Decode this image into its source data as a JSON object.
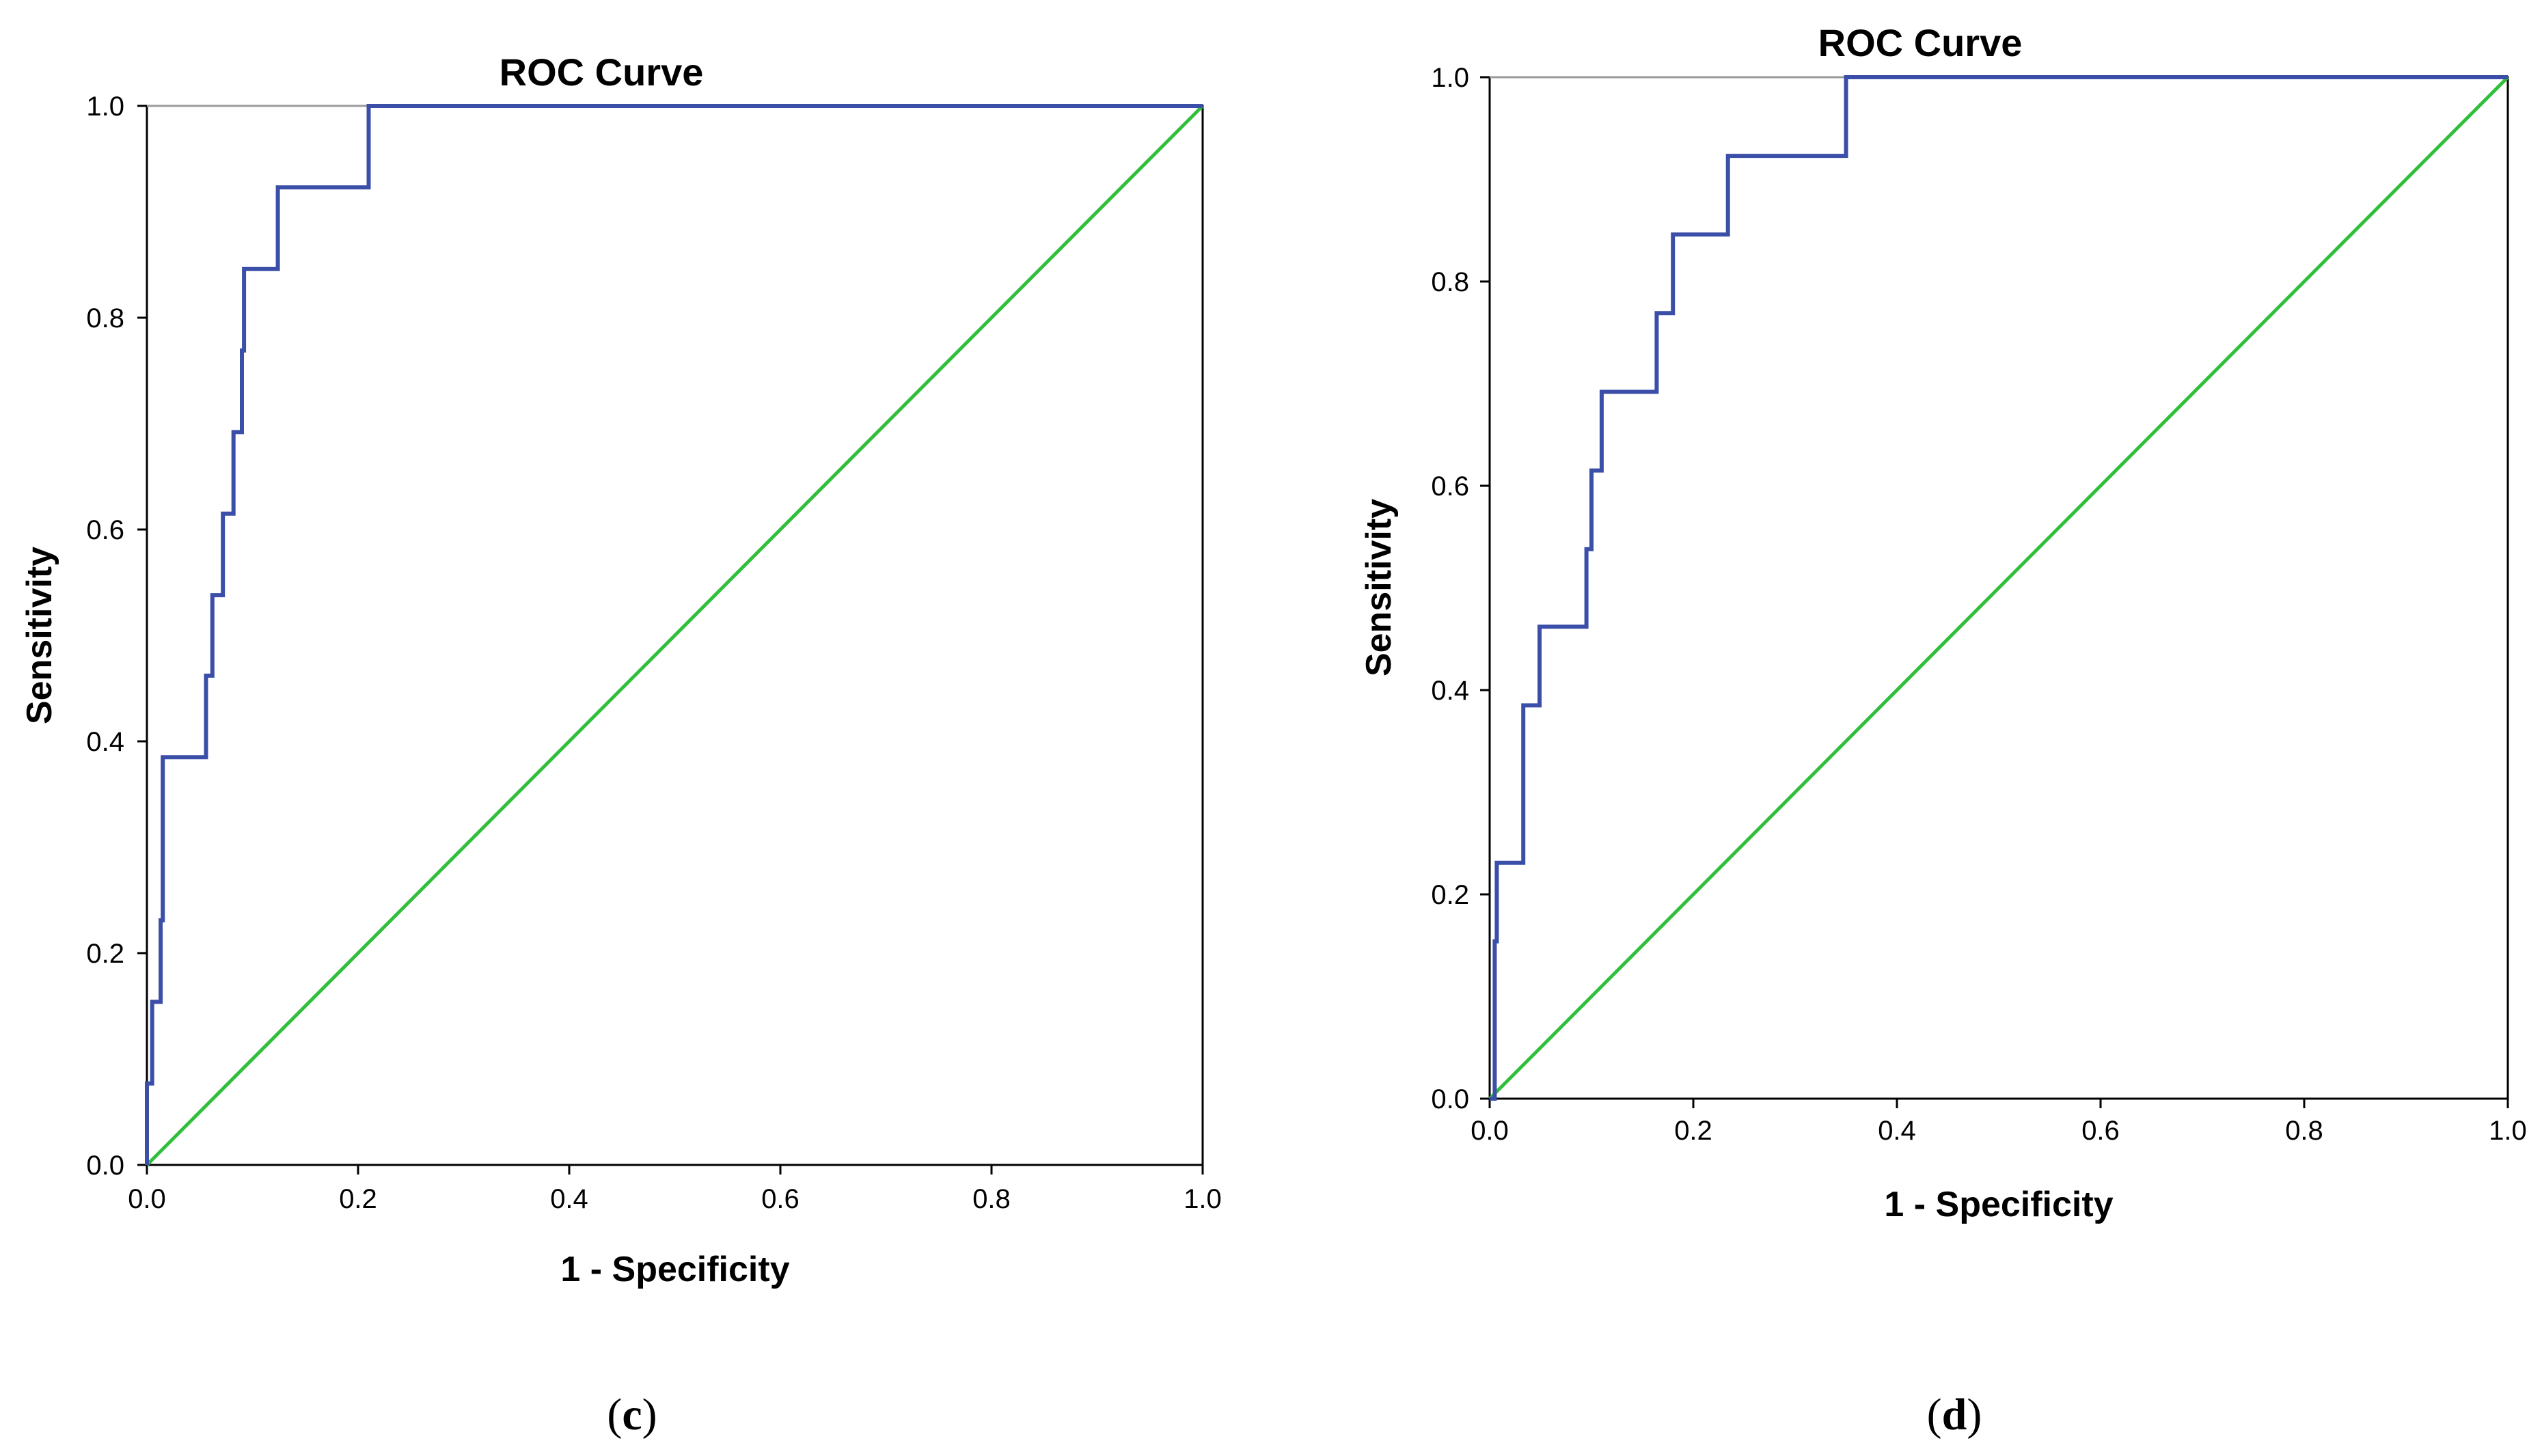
{
  "chart_data": [
    {
      "type": "line",
      "panel": "c",
      "title": "ROC Curve",
      "xlabel": "1 - Specificity",
      "ylabel": "Sensitivity",
      "xlim": [
        0.0,
        1.0
      ],
      "ylim": [
        0.0,
        1.0
      ],
      "xticks": [
        "0.0",
        "0.2",
        "0.4",
        "0.6",
        "0.8",
        "1.0"
      ],
      "yticks": [
        "0.0",
        "0.2",
        "0.4",
        "0.6",
        "0.8",
        "1.0"
      ],
      "series": [
        {
          "name": "roc-curve",
          "color": "#3b4fa8",
          "x": [
            0.0,
            0.0,
            0.005,
            0.005,
            0.013,
            0.013,
            0.015,
            0.015,
            0.056,
            0.056,
            0.062,
            0.062,
            0.072,
            0.072,
            0.082,
            0.082,
            0.09,
            0.09,
            0.092,
            0.092,
            0.124,
            0.124,
            0.21,
            0.21,
            1.0
          ],
          "y": [
            0.0,
            0.077,
            0.077,
            0.154,
            0.154,
            0.231,
            0.231,
            0.385,
            0.385,
            0.462,
            0.462,
            0.538,
            0.538,
            0.615,
            0.615,
            0.692,
            0.692,
            0.769,
            0.769,
            0.846,
            0.846,
            0.923,
            0.923,
            1.0,
            1.0
          ]
        },
        {
          "name": "reference-line",
          "color": "#2fbf3a",
          "x": [
            0.0,
            1.0
          ],
          "y": [
            0.0,
            1.0
          ]
        }
      ]
    },
    {
      "type": "line",
      "panel": "d",
      "title": "ROC Curve",
      "xlabel": "1 - Specificity",
      "ylabel": "Sensitivity",
      "xlim": [
        0.0,
        1.0
      ],
      "ylim": [
        0.0,
        1.0
      ],
      "xticks": [
        "0.0",
        "0.2",
        "0.4",
        "0.6",
        "0.8",
        "1.0"
      ],
      "yticks": [
        "0.0",
        "0.2",
        "0.4",
        "0.6",
        "0.8",
        "1.0"
      ],
      "series": [
        {
          "name": "roc-curve",
          "color": "#3b4fa8",
          "x": [
            0.0,
            0.005,
            0.005,
            0.007,
            0.007,
            0.033,
            0.033,
            0.049,
            0.049,
            0.095,
            0.095,
            0.1,
            0.1,
            0.11,
            0.11,
            0.164,
            0.164,
            0.18,
            0.18,
            0.234,
            0.234,
            0.35,
            0.35,
            1.0
          ],
          "y": [
            0.0,
            0.0,
            0.154,
            0.154,
            0.231,
            0.231,
            0.385,
            0.385,
            0.462,
            0.462,
            0.538,
            0.538,
            0.615,
            0.615,
            0.692,
            0.692,
            0.769,
            0.769,
            0.846,
            0.846,
            0.923,
            0.923,
            1.0,
            1.0
          ]
        },
        {
          "name": "reference-line",
          "color": "#2fbf3a",
          "x": [
            0.0,
            1.0
          ],
          "y": [
            0.0,
            1.0
          ]
        }
      ]
    }
  ],
  "panel_labels": {
    "c": {
      "open": "(",
      "letter": "c",
      "close": ")"
    },
    "d": {
      "open": "(",
      "letter": "d",
      "close": ")"
    }
  }
}
